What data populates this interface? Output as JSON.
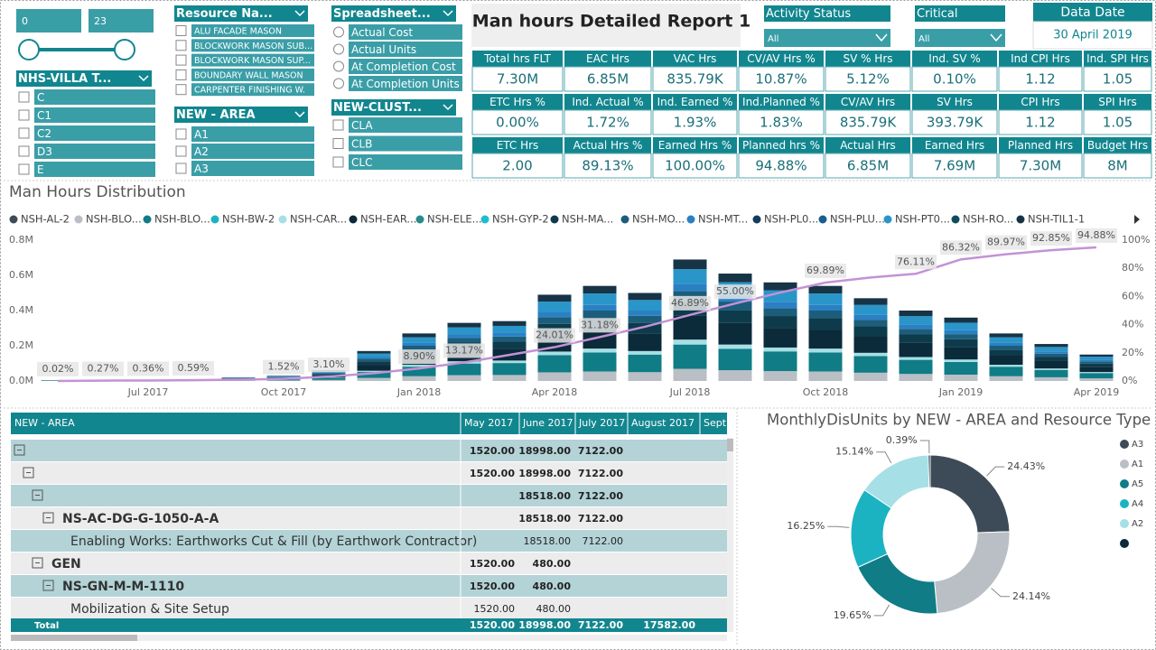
{
  "range_slicer": {
    "min": 0,
    "max": 23
  },
  "slicers": [
    {
      "title": "NHS-VILLA T...",
      "items": [
        "C",
        "C1",
        "C2",
        "D3",
        "E"
      ]
    },
    {
      "title": "Resource Na...",
      "items": [
        "ALU FACADE MASON",
        "BLOCKWORK MASON SUB...",
        "BLOCKWORK MASON SUP...",
        "BOUNDARY WALL MASON",
        "CARPENTER FINISHING W."
      ]
    },
    {
      "title": "NEW - AREA",
      "items": [
        "A1",
        "A2",
        "A3"
      ]
    },
    {
      "title": "Spreadsheet...",
      "items": [
        "Actual Cost",
        "Actual Units",
        "At Completion Cost",
        "At Completion Units"
      ]
    },
    {
      "title": "NEW-CLUST...",
      "items": [
        "CLA",
        "CLB",
        "CLC"
      ]
    }
  ],
  "report_title": "Man hours Detailed Report 1",
  "dropdowns": [
    {
      "title": "Activity Status",
      "value": "All"
    },
    {
      "title": "Critical",
      "value": "All"
    }
  ],
  "data_date": {
    "title": "Data Date",
    "value": "30 April 2019"
  },
  "kpi_cards": [
    {
      "label": "Total hrs FLT",
      "value": "7.30M"
    },
    {
      "label": "EAC Hrs",
      "value": "6.85M"
    },
    {
      "label": "VAC Hrs",
      "value": "835.79K"
    },
    {
      "label": "CV/AV Hrs %",
      "value": "10.87%"
    },
    {
      "label": "SV % Hrs",
      "value": "5.12%"
    },
    {
      "label": "Ind. SV %",
      "value": "0.10%"
    },
    {
      "label": "Ind CPI Hrs",
      "value": "1.12"
    },
    {
      "label": "Ind. SPI Hrs",
      "value": "1.05"
    },
    {
      "label": "ETC Hrs %",
      "value": "0.00%"
    },
    {
      "label": "Ind. Actual %",
      "value": "1.72%"
    },
    {
      "label": "Ind. Earned %",
      "value": "1.93%"
    },
    {
      "label": "Ind.Planned %",
      "value": "1.83%"
    },
    {
      "label": "CV/AV Hrs",
      "value": "835.79K"
    },
    {
      "label": "SV Hrs",
      "value": "393.79K"
    },
    {
      "label": "CPI Hrs",
      "value": "1.12"
    },
    {
      "label": "SPI Hrs",
      "value": "1.05"
    },
    {
      "label": "ETC Hrs",
      "value": "2.00"
    },
    {
      "label": "Actual Hrs %",
      "value": "89.13%"
    },
    {
      "label": "Earned Hrs %",
      "value": "100.00%"
    },
    {
      "label": "Planned hrs %",
      "value": "94.88%"
    },
    {
      "label": "Actual Hrs",
      "value": "6.85M"
    },
    {
      "label": "Earned Hrs",
      "value": "7.69M"
    },
    {
      "label": "Planned Hrs",
      "value": "7.30M"
    },
    {
      "label": "Budget Hrs",
      "value": "8M"
    }
  ],
  "matrix": {
    "headers": [
      "NEW - AREA",
      "May 2017",
      "June 2017",
      "July 2017",
      "August 2017",
      "Sept"
    ],
    "rows": [
      {
        "label": null,
        "cells": [
          "1520.00",
          "18998.00",
          "7122.00",
          null
        ]
      },
      {
        "label": null,
        "cells": [
          "1520.00",
          "18998.00",
          "7122.00",
          null
        ]
      },
      {
        "label": null,
        "cells": [
          null,
          "18518.00",
          "7122.00",
          null
        ]
      },
      {
        "label": "NS-AC-DG-G-1050-A-A",
        "cells": [
          null,
          "18518.00",
          "7122.00",
          null
        ]
      },
      {
        "label": "Enabling Works: Earthworks Cut & Fill (by Earthwork Contractor)",
        "cells": [
          null,
          "18518.00",
          "7122.00",
          null
        ]
      },
      {
        "label": "GEN",
        "cells": [
          "1520.00",
          "480.00",
          null,
          null
        ]
      },
      {
        "label": "NS-GN-M-M-1110",
        "cells": [
          "1520.00",
          "480.00",
          null,
          null
        ]
      },
      {
        "label": "Mobilization & Site Setup",
        "cells": [
          "1520.00",
          "480.00",
          null,
          null
        ]
      }
    ],
    "total": {
      "label": "Total",
      "cells": [
        "1520.00",
        "18998.00",
        "7122.00",
        "17582.00"
      ]
    }
  },
  "chart_data": [
    {
      "type": "bar",
      "stacked": true,
      "title": "Man Hours Distribution",
      "categories": [
        null,
        null,
        "Jul 2017",
        null,
        null,
        "Oct 2017",
        null,
        null,
        "Jan 2018",
        null,
        null,
        "Apr 2018",
        null,
        null,
        "Jul 2018",
        null,
        null,
        "Oct 2018",
        null,
        null,
        "Jan 2019",
        null,
        null,
        "Apr 2019"
      ],
      "ylim": [
        0,
        0.8
      ],
      "yticks": [
        {
          "value": 0,
          "label": "0.0M"
        },
        {
          "value": 0.2,
          "label": "0.2M"
        },
        {
          "value": 0.4,
          "label": "0.4M"
        },
        {
          "value": 0.6,
          "label": "0.6M"
        },
        {
          "value": 0.8,
          "label": "0.8M"
        }
      ],
      "y2lim": [
        0,
        100
      ],
      "y2ticks": [
        {
          "value": 0,
          "label": "0%"
        },
        {
          "value": 20,
          "label": "20%"
        },
        {
          "value": 40,
          "label": "40%"
        },
        {
          "value": 60,
          "label": "60%"
        },
        {
          "value": 80,
          "label": "80%"
        },
        {
          "value": 100,
          "label": "100%"
        }
      ],
      "grid": false,
      "series": [
        {
          "name": "NSH-AL-2",
          "color": "#3d4b59",
          "values": [
            0,
            0,
            0,
            0,
            0,
            0,
            0,
            0,
            0,
            0,
            0,
            0,
            0,
            0,
            0,
            0,
            0,
            0,
            0,
            0,
            0,
            0,
            0,
            0
          ]
        },
        {
          "name": "NSH-BLO...",
          "color": "#b9bfc5",
          "values": [
            0.001,
            0.001,
            0.001,
            0.001,
            0.002,
            0.003,
            0.006,
            0.017,
            0.027,
            0.033,
            0.034,
            0.049,
            0.054,
            0.05,
            0.069,
            0.061,
            0.056,
            0.054,
            0.047,
            0.04,
            0.036,
            0.027,
            0.021,
            0.015
          ]
        },
        {
          "name": "NSH-BLO...",
          "color": "#0f7c86",
          "values": [
            0.001,
            0.001,
            0.001,
            0.002,
            0.004,
            0.006,
            0.012,
            0.034,
            0.054,
            0.066,
            0.068,
            0.098,
            0.108,
            0.1,
            0.138,
            0.122,
            0.112,
            0.108,
            0.094,
            0.08,
            0.072,
            0.054,
            0.042,
            0.03
          ]
        },
        {
          "name": "NSH-BW-2",
          "color": "#1bb3c2",
          "values": [
            0,
            0,
            0,
            0,
            0,
            0,
            0,
            0,
            0,
            0,
            0,
            0,
            0,
            0,
            0,
            0,
            0,
            0,
            0,
            0,
            0,
            0,
            0,
            0
          ]
        },
        {
          "name": "NSH-CAR...",
          "color": "#a6dfe5",
          "values": [
            0,
            0,
            0,
            0,
            0.001,
            0.001,
            0.002,
            0.007,
            0.011,
            0.013,
            0.014,
            0.02,
            0.022,
            0.02,
            0.028,
            0.024,
            0.022,
            0.022,
            0.019,
            0.016,
            0.014,
            0.011,
            0.008,
            0.006
          ]
        },
        {
          "name": "NSH-EAR...",
          "color": "#0b2a3a",
          "values": [
            0.001,
            0.001,
            0.001,
            0.002,
            0.004,
            0.006,
            0.012,
            0.034,
            0.054,
            0.066,
            0.068,
            0.098,
            0.108,
            0.1,
            0.138,
            0.122,
            0.112,
            0.108,
            0.094,
            0.08,
            0.072,
            0.054,
            0.042,
            0.03
          ]
        },
        {
          "name": "NSH-ELE...",
          "color": "#2a8b8b",
          "values": [
            0,
            0,
            0,
            0,
            0,
            0,
            0,
            0,
            0,
            0,
            0,
            0,
            0,
            0,
            0,
            0,
            0,
            0,
            0,
            0,
            0,
            0,
            0,
            0
          ]
        },
        {
          "name": "NSH-GYP-2",
          "color": "#1ebcd0",
          "values": [
            0,
            0,
            0,
            0,
            0,
            0,
            0,
            0,
            0,
            0,
            0,
            0,
            0,
            0,
            0,
            0,
            0,
            0,
            0,
            0,
            0,
            0,
            0,
            0
          ]
        },
        {
          "name": "NSH-MA...",
          "color": "#0d3b4c",
          "values": [
            0.001,
            0.001,
            0.001,
            0.001,
            0.002,
            0.004,
            0.007,
            0.02,
            0.032,
            0.04,
            0.041,
            0.059,
            0.065,
            0.06,
            0.083,
            0.073,
            0.067,
            0.065,
            0.056,
            0.048,
            0.043,
            0.032,
            0.025,
            0.018
          ]
        },
        {
          "name": "NSH-MO...",
          "color": "#1b5d7a",
          "values": [
            0,
            0,
            0,
            0.001,
            0.002,
            0.002,
            0.005,
            0.014,
            0.022,
            0.026,
            0.027,
            0.039,
            0.043,
            0.04,
            0.055,
            0.049,
            0.045,
            0.043,
            0.038,
            0.032,
            0.029,
            0.022,
            0.017,
            0.012
          ]
        },
        {
          "name": "NSH-MT...",
          "color": "#2b80c4",
          "values": [
            0,
            0,
            0,
            0,
            0.001,
            0.002,
            0.004,
            0.01,
            0.016,
            0.02,
            0.02,
            0.029,
            0.032,
            0.03,
            0.041,
            0.037,
            0.034,
            0.032,
            0.028,
            0.024,
            0.022,
            0.016,
            0.013,
            0.009
          ]
        },
        {
          "name": "NSH-PL0...",
          "color": "#163b5a",
          "values": [
            0,
            0,
            0,
            0,
            0,
            0,
            0,
            0,
            0,
            0,
            0,
            0,
            0,
            0,
            0,
            0,
            0,
            0,
            0,
            0,
            0,
            0,
            0,
            0
          ]
        },
        {
          "name": "NSH-PLU...",
          "color": "#185f8c",
          "values": [
            0,
            0,
            0,
            0,
            0,
            0,
            0,
            0,
            0,
            0,
            0,
            0,
            0,
            0,
            0,
            0,
            0,
            0,
            0,
            0,
            0,
            0,
            0,
            0
          ]
        },
        {
          "name": "NSH-PT0...",
          "color": "#2a95c9",
          "values": [
            0.001,
            0.001,
            0.001,
            0.001,
            0.002,
            0.004,
            0.007,
            0.02,
            0.032,
            0.04,
            0.041,
            0.059,
            0.065,
            0.06,
            0.083,
            0.073,
            0.067,
            0.065,
            0.056,
            0.048,
            0.043,
            0.032,
            0.025,
            0.018
          ]
        },
        {
          "name": "NSH-RO...",
          "color": "#0e4c5e",
          "values": [
            0,
            0,
            0,
            0,
            0,
            0,
            0,
            0,
            0,
            0,
            0,
            0,
            0,
            0,
            0,
            0,
            0,
            0,
            0,
            0,
            0,
            0,
            0,
            0
          ]
        },
        {
          "name": "NSH-TIL1-1",
          "color": "#173447",
          "values": [
            0,
            0,
            0,
            0.001,
            0.002,
            0.002,
            0.005,
            0.014,
            0.022,
            0.026,
            0.027,
            0.039,
            0.043,
            0.04,
            0.055,
            0.049,
            0.045,
            0.043,
            0.038,
            0.032,
            0.029,
            0.022,
            0.017,
            0.012
          ]
        },
        {
          "type": "line",
          "axis": "y2",
          "color": "#c392d6",
          "values": [
            0.02,
            0.27,
            0.36,
            0.59,
            0.9,
            1.52,
            3.1,
            5.5,
            8.9,
            13.17,
            18.5,
            24.01,
            31.18,
            38.5,
            46.89,
            55.0,
            62.8,
            69.89,
            73.5,
            76.11,
            86.32,
            89.97,
            92.85,
            94.88
          ],
          "value_labels": [
            "0.02%",
            "0.27%",
            "0.36%",
            "0.59%",
            null,
            "1.52%",
            "3.10%",
            null,
            "8.90%",
            "13.17%",
            null,
            "24.01%",
            "31.18%",
            null,
            "46.89%",
            "55.00%",
            null,
            "69.89%",
            null,
            "76.11%",
            "86.32%",
            "89.97%",
            "92.85%",
            "94.88%"
          ]
        }
      ]
    },
    {
      "type": "pie",
      "donut": true,
      "title": "MonthlyDisUnits by NEW - AREA and Resource Type",
      "categories": [
        "A3",
        "A1",
        "A5",
        "A4",
        "A2",
        null
      ],
      "values": [
        24.43,
        24.14,
        19.65,
        16.25,
        15.14,
        0.39
      ],
      "value_labels": [
        "24.43%",
        "24.14%",
        "19.65%",
        "16.25%",
        "15.14%",
        "0.39%"
      ],
      "colors": [
        "#3d4b59",
        "#b9bfc5",
        "#0f7c86",
        "#1bb3c2",
        "#a6dfe5",
        "#0b2a3a"
      ]
    }
  ]
}
